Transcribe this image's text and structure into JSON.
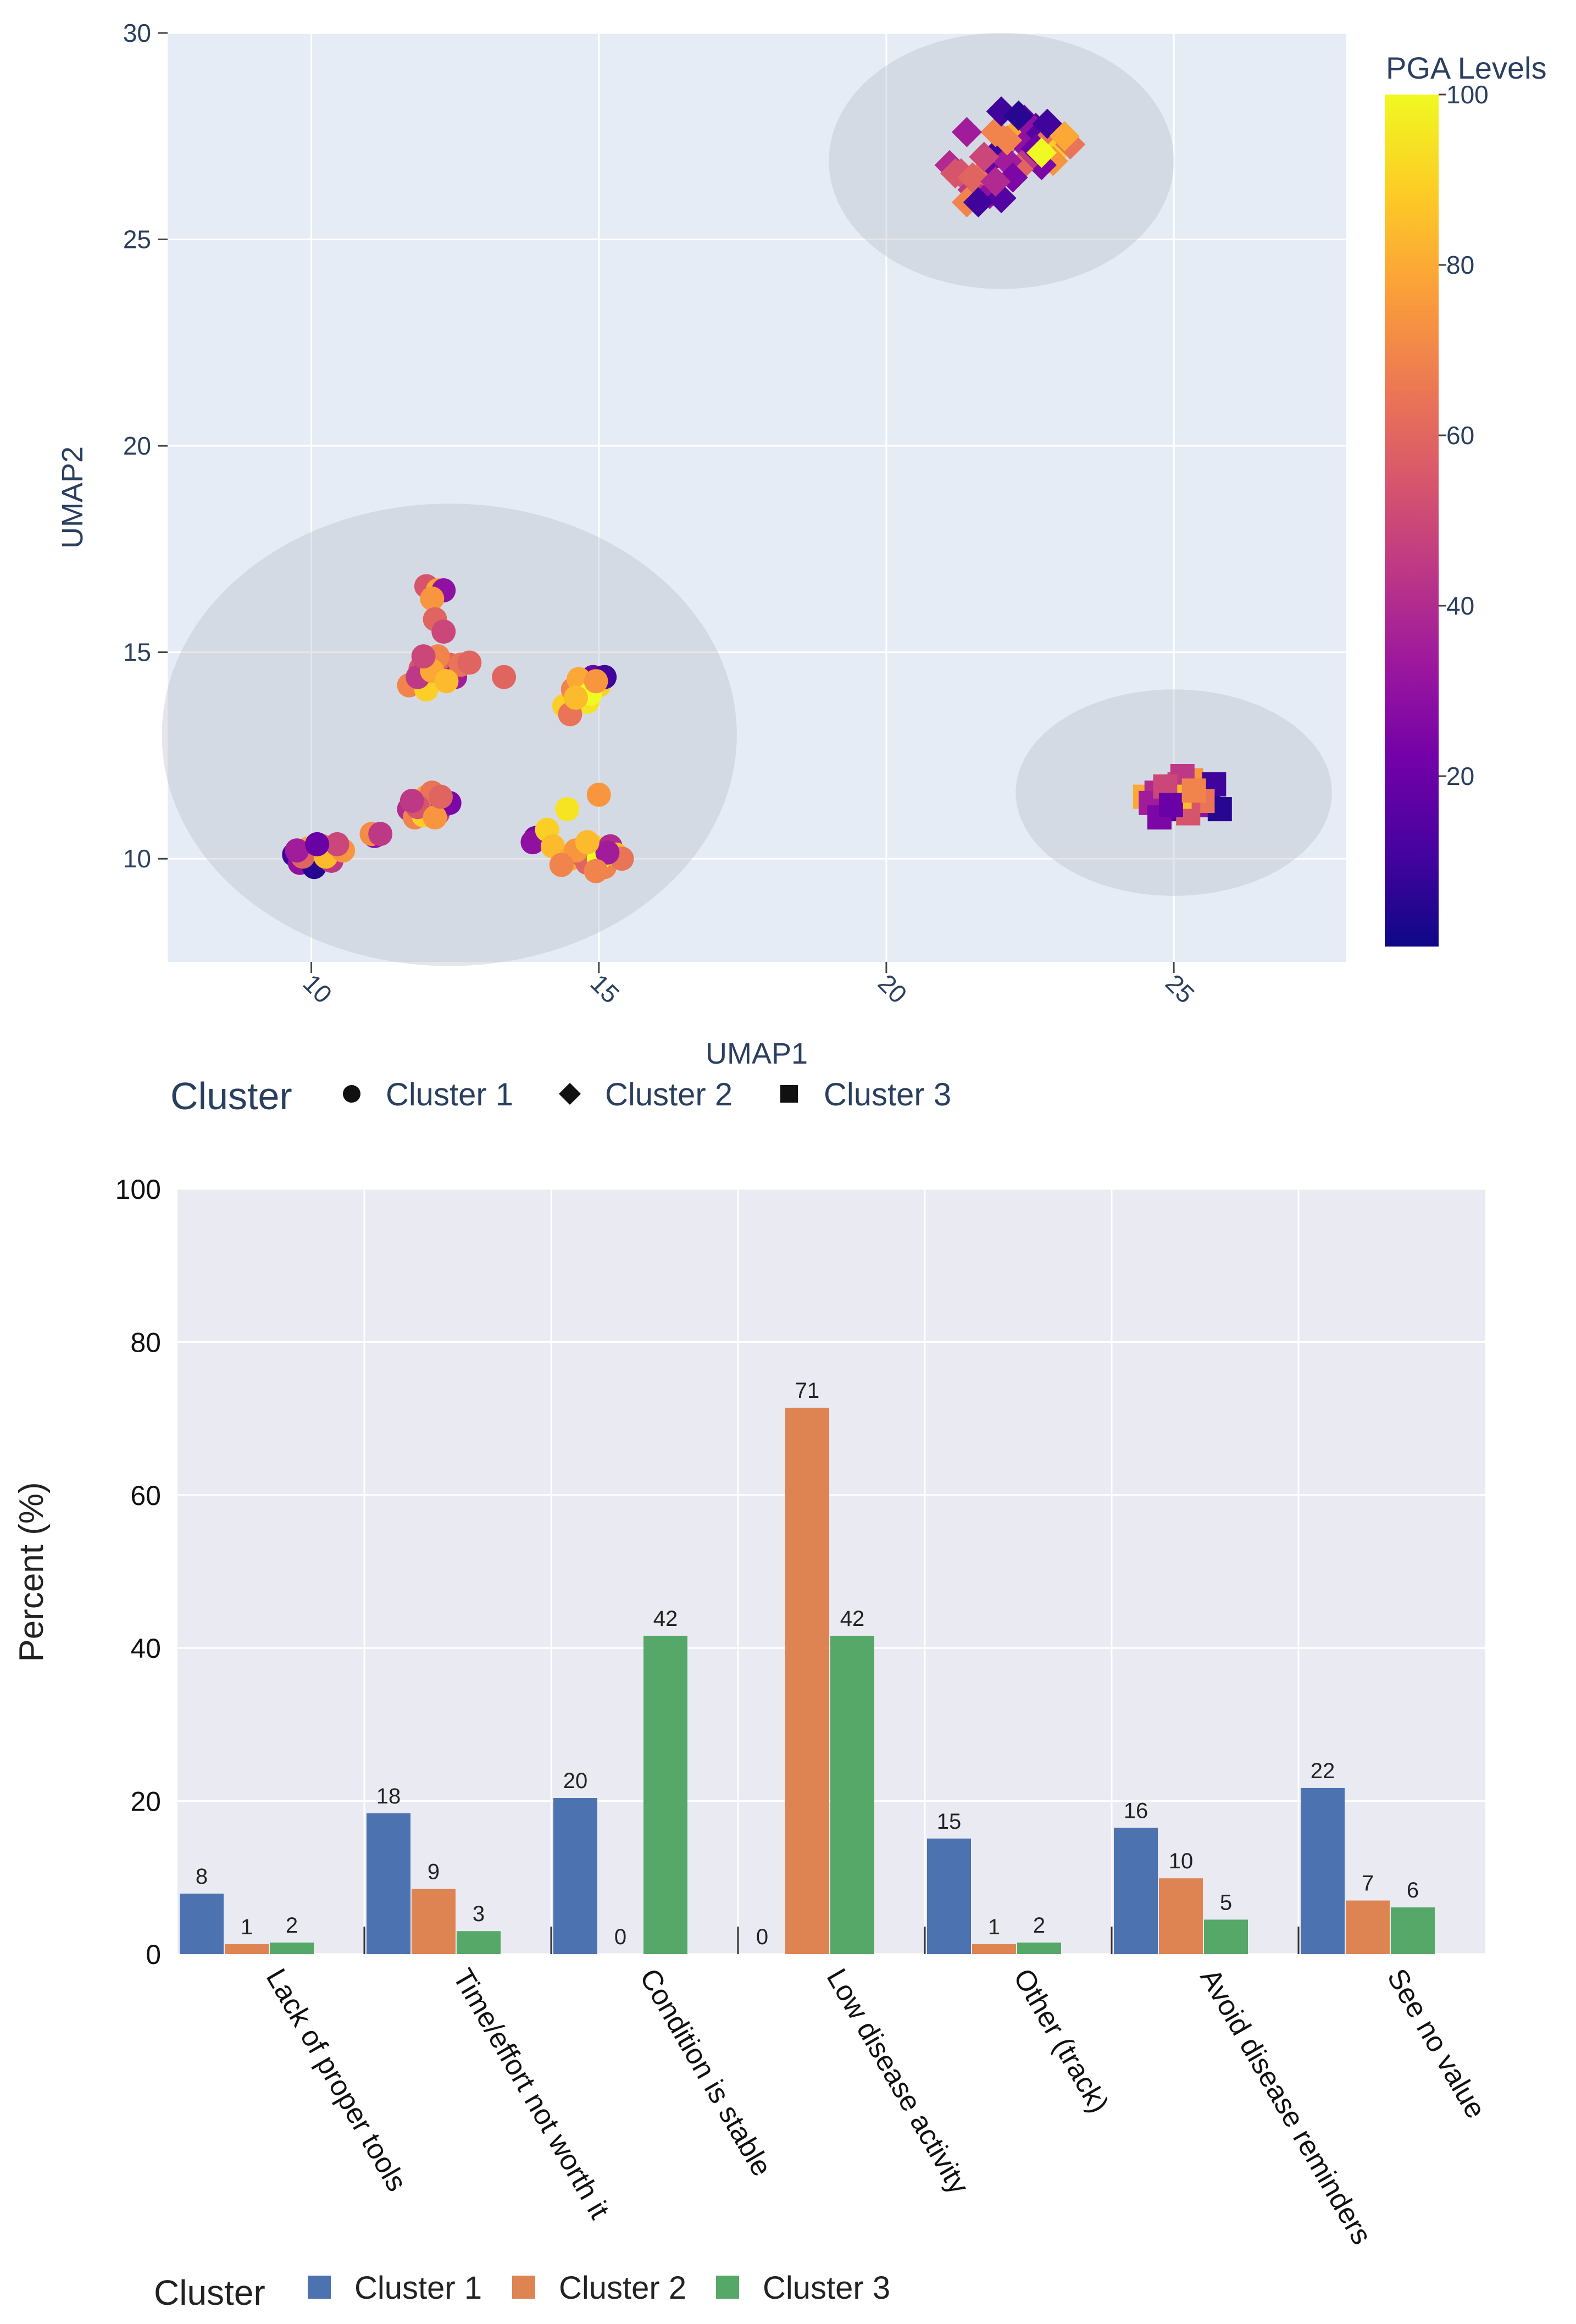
{
  "chart_data": [
    {
      "type": "scatter",
      "xlabel": "UMAP1",
      "ylabel": "UMAP2",
      "xlim": [
        7.5,
        28
      ],
      "ylim": [
        7.5,
        30
      ],
      "xticks": [
        10,
        15,
        20,
        25
      ],
      "yticks": [
        10,
        15,
        20,
        25,
        30
      ],
      "grid": true,
      "legend_title": "Cluster",
      "legend_position": "bottom",
      "colorbar": {
        "title": "PGA Levels",
        "range": [
          0,
          100
        ],
        "ticks": [
          20,
          40,
          60,
          80,
          100
        ]
      },
      "colorscale": [
        "#0d0887",
        "#46039f",
        "#7201a8",
        "#9c179e",
        "#bd3786",
        "#d8576b",
        "#ed7953",
        "#fb9f3a",
        "#fdca26",
        "#f0f921"
      ],
      "ellipses": [
        {
          "cx": 12.4,
          "cy": 13.0,
          "rx": 5.0,
          "ry": 5.6
        },
        {
          "cx": 22.0,
          "cy": 26.9,
          "rx": 3.0,
          "ry": 3.1
        },
        {
          "cx": 25.0,
          "cy": 11.6,
          "rx": 2.75,
          "ry": 2.5
        }
      ],
      "series": [
        {
          "name": "Cluster 1",
          "marker": "circle",
          "points": [
            [
              9.7,
              10.1,
              10
            ],
            [
              9.9,
              10.2,
              25
            ],
            [
              10.1,
              10.0,
              40
            ],
            [
              10.3,
              10.2,
              55
            ],
            [
              10.0,
              9.9,
              70
            ],
            [
              9.8,
              9.9,
              30
            ],
            [
              10.4,
              10.1,
              20
            ],
            [
              10.2,
              10.3,
              65
            ],
            [
              9.95,
              10.25,
              80
            ],
            [
              10.15,
              10.15,
              15
            ],
            [
              10.05,
              9.8,
              5
            ],
            [
              10.35,
              9.95,
              45
            ],
            [
              9.85,
              10.05,
              60
            ],
            [
              10.25,
              10.05,
              85
            ],
            [
              9.75,
              10.2,
              35
            ],
            [
              10.55,
              10.2,
              75
            ],
            [
              10.45,
              10.35,
              50
            ],
            [
              10.1,
              10.35,
              20
            ],
            [
              11.1,
              10.55,
              30
            ],
            [
              11.05,
              10.6,
              72
            ],
            [
              11.2,
              10.6,
              45
            ],
            [
              11.7,
              11.2,
              40
            ],
            [
              11.9,
              11.4,
              60
            ],
            [
              12.1,
              11.3,
              20
            ],
            [
              12.0,
              11.5,
              80
            ],
            [
              12.2,
              11.1,
              50
            ],
            [
              11.8,
              11.0,
              70
            ],
            [
              12.3,
              11.3,
              35
            ],
            [
              12.1,
              11.6,
              65
            ],
            [
              11.95,
              11.05,
              90
            ],
            [
              12.4,
              11.35,
              25
            ],
            [
              11.85,
              11.25,
              55
            ],
            [
              12.15,
              11.0,
              75
            ],
            [
              11.75,
              11.4,
              45
            ],
            [
              12.25,
              11.5,
              60
            ],
            [
              12.0,
              16.6,
              55
            ],
            [
              12.2,
              16.5,
              80
            ],
            [
              12.3,
              16.5,
              30
            ],
            [
              12.1,
              16.3,
              75
            ],
            [
              12.15,
              15.8,
              60
            ],
            [
              12.3,
              15.5,
              50
            ],
            [
              11.7,
              14.2,
              70
            ],
            [
              11.9,
              14.6,
              55
            ],
            [
              12.1,
              14.8,
              75
            ],
            [
              12.3,
              14.5,
              40
            ],
            [
              12.0,
              14.1,
              90
            ],
            [
              12.4,
              14.7,
              60
            ],
            [
              11.85,
              14.4,
              45
            ],
            [
              12.2,
              14.9,
              70
            ],
            [
              12.5,
              14.4,
              35
            ],
            [
              12.6,
              14.7,
              65
            ],
            [
              12.75,
              14.75,
              60
            ],
            [
              12.1,
              14.55,
              80
            ],
            [
              11.95,
              14.9,
              50
            ],
            [
              12.35,
              14.3,
              85
            ],
            [
              13.35,
              14.4,
              60
            ],
            [
              14.4,
              13.7,
              90
            ],
            [
              14.6,
              14.0,
              60
            ],
            [
              14.7,
              14.3,
              85
            ],
            [
              14.9,
              14.4,
              20
            ],
            [
              14.55,
              14.1,
              70
            ],
            [
              14.8,
              13.8,
              95
            ],
            [
              15.0,
              14.2,
              90
            ],
            [
              14.75,
              14.1,
              40
            ],
            [
              14.5,
              13.5,
              65
            ],
            [
              14.65,
              14.35,
              80
            ],
            [
              14.85,
              14.0,
              100
            ],
            [
              15.1,
              14.4,
              10
            ],
            [
              14.95,
              14.3,
              75
            ],
            [
              14.6,
              13.9,
              85
            ],
            [
              13.9,
              10.5,
              25
            ],
            [
              13.85,
              10.4,
              30
            ],
            [
              14.1,
              10.7,
              90
            ],
            [
              14.2,
              10.3,
              85
            ],
            [
              14.45,
              11.2,
              95
            ],
            [
              14.5,
              10.0,
              80
            ],
            [
              14.7,
              10.1,
              60
            ],
            [
              14.9,
              10.3,
              90
            ],
            [
              15.1,
              9.8,
              70
            ],
            [
              15.2,
              10.3,
              40
            ],
            [
              14.8,
              9.9,
              60
            ],
            [
              15.3,
              10.1,
              85
            ],
            [
              15.0,
              10.0,
              100
            ],
            [
              14.6,
              10.2,
              75
            ],
            [
              15.4,
              10.0,
              65
            ],
            [
              15.15,
              10.15,
              35
            ],
            [
              14.95,
              9.7,
              70
            ],
            [
              15.0,
              11.55,
              75
            ],
            [
              14.35,
              9.85,
              70
            ],
            [
              14.8,
              10.4,
              85
            ]
          ]
        },
        {
          "name": "Cluster 2",
          "marker": "diamond",
          "points": [
            [
              21.1,
              26.8,
              40
            ],
            [
              21.3,
              26.6,
              55
            ],
            [
              21.6,
              26.5,
              65
            ],
            [
              21.8,
              26.9,
              20
            ],
            [
              22.0,
              27.2,
              10
            ],
            [
              22.2,
              27.5,
              80
            ],
            [
              22.4,
              27.3,
              30
            ],
            [
              22.6,
              27.7,
              15
            ],
            [
              22.8,
              27.4,
              65
            ],
            [
              23.0,
              27.2,
              90
            ],
            [
              22.9,
              26.9,
              75
            ],
            [
              22.7,
              26.8,
              25
            ],
            [
              22.5,
              27.0,
              45
            ],
            [
              22.3,
              26.7,
              60
            ],
            [
              22.1,
              26.9,
              35
            ],
            [
              21.9,
              27.6,
              70
            ],
            [
              22.0,
              28.1,
              10
            ],
            [
              22.4,
              27.9,
              30
            ],
            [
              22.3,
              28.0,
              5
            ],
            [
              22.6,
              27.2,
              20
            ],
            [
              21.7,
              27.0,
              50
            ],
            [
              21.5,
              26.2,
              45
            ],
            [
              21.4,
              25.9,
              70
            ],
            [
              21.8,
              26.1,
              30
            ],
            [
              22.0,
              26.0,
              15
            ],
            [
              21.6,
              25.9,
              10
            ],
            [
              21.4,
              27.6,
              35
            ],
            [
              22.2,
              26.5,
              25
            ],
            [
              22.8,
              27.8,
              10
            ],
            [
              23.2,
              27.3,
              65
            ],
            [
              23.1,
              27.5,
              80
            ],
            [
              22.7,
              27.1,
              100
            ],
            [
              21.2,
              26.6,
              55
            ],
            [
              21.5,
              26.5,
              60
            ],
            [
              21.9,
              26.4,
              40
            ],
            [
              22.1,
              27.4,
              70
            ]
          ]
        },
        {
          "name": "Cluster 3",
          "marker": "square",
          "points": [
            [
              24.5,
              11.5,
              80
            ],
            [
              24.7,
              11.6,
              40
            ],
            [
              24.8,
              11.2,
              20
            ],
            [
              25.0,
              11.4,
              60
            ],
            [
              25.1,
              11.8,
              50
            ],
            [
              25.2,
              11.6,
              10
            ],
            [
              25.3,
              11.9,
              75
            ],
            [
              25.4,
              11.3,
              30
            ],
            [
              25.6,
              11.5,
              5
            ],
            [
              25.7,
              11.8,
              10
            ],
            [
              25.8,
              11.2,
              5
            ],
            [
              24.9,
              11.6,
              90
            ],
            [
              25.05,
              11.2,
              15
            ],
            [
              24.6,
              11.35,
              35
            ],
            [
              25.5,
              11.4,
              65
            ],
            [
              25.15,
              12.0,
              45
            ],
            [
              24.75,
              11.0,
              25
            ],
            [
              25.25,
              11.1,
              55
            ],
            [
              25.1,
              11.5,
              85
            ],
            [
              24.85,
              11.75,
              50
            ],
            [
              24.95,
              11.3,
              20
            ],
            [
              25.35,
              11.65,
              70
            ]
          ]
        }
      ]
    },
    {
      "type": "bar",
      "categories": [
        "Lack of proper tools",
        "Time/effort not worth it",
        "Condition is stable",
        "Low disease activity",
        "Other (track)",
        "Avoid disease reminders",
        "See no value"
      ],
      "series": [
        {
          "name": "Cluster 1",
          "color": "#4c72b0",
          "values": [
            8,
            18,
            20,
            0,
            15,
            16,
            22
          ],
          "plotted": [
            7.9,
            18.4,
            20.4,
            0,
            15.1,
            16.5,
            21.7
          ],
          "labels": [
            "8",
            "18",
            "20",
            "0",
            "15",
            "16",
            "22"
          ]
        },
        {
          "name": "Cluster 2",
          "color": "#dd8452",
          "values": [
            1,
            9,
            0,
            71,
            1,
            10,
            7
          ],
          "plotted": [
            1.3,
            8.5,
            0,
            71.4,
            1.3,
            9.9,
            7.0
          ],
          "labels": [
            "1",
            "9",
            "0",
            "71",
            "1",
            "10",
            "7"
          ]
        },
        {
          "name": "Cluster 3",
          "color": "#55a868",
          "values": [
            2,
            3,
            42,
            42,
            2,
            5,
            6
          ],
          "plotted": [
            1.5,
            3.0,
            41.6,
            41.6,
            1.5,
            4.5,
            6.1
          ],
          "labels": [
            "2",
            "3",
            "42",
            "42",
            "2",
            "5",
            "6"
          ]
        }
      ],
      "xlabel": "",
      "ylabel": "Percent (%)",
      "ylim": [
        0,
        100
      ],
      "yticks": [
        0,
        20,
        40,
        60,
        80,
        100
      ],
      "grid": true,
      "legend_title": "Cluster",
      "legend_position": "bottom"
    }
  ]
}
